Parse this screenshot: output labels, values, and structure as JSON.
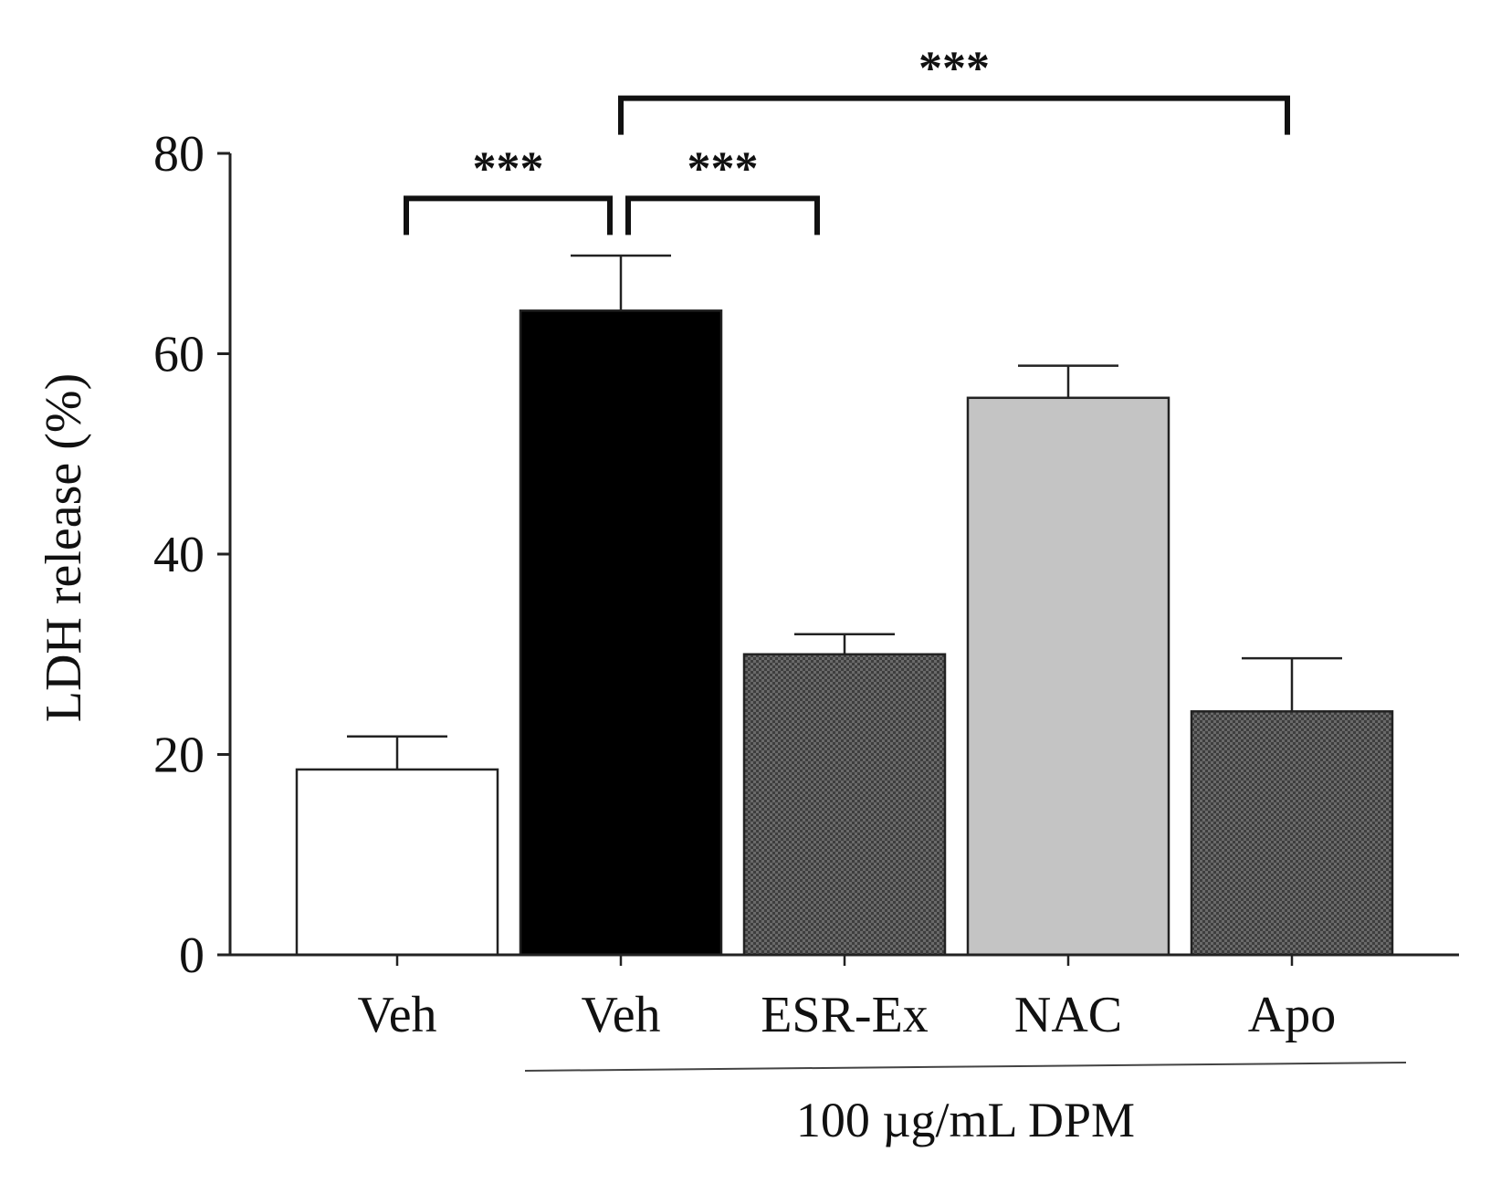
{
  "chart_data": {
    "type": "bar",
    "title": "",
    "xlabel": "",
    "ylabel": "LDH release (%)",
    "ylim": [
      0,
      80
    ],
    "yticks": [
      0,
      20,
      40,
      60,
      80
    ],
    "categories": [
      "Veh",
      "Veh",
      "ESR-Ex",
      "NAC",
      "Apo"
    ],
    "values": [
      18.5,
      64.3,
      30.0,
      55.6,
      24.3
    ],
    "errors": [
      3.3,
      5.5,
      2.0,
      3.2,
      5.3
    ],
    "bar_colors": [
      "#ffffff",
      "#000000",
      "#4a4a4a",
      "#c4c4c4",
      "#4a4a4a"
    ],
    "bar_patterns": [
      "none",
      "none",
      "checker",
      "none",
      "checker"
    ],
    "group_label": "100 µg/mL DPM",
    "group_covers": [
      1,
      2,
      3,
      4
    ],
    "significance": [
      {
        "from": 0,
        "to": 1,
        "label": "***",
        "y": 75.5
      },
      {
        "from": 1,
        "to": 2,
        "label": "***",
        "y": 75.5
      },
      {
        "from": 1,
        "to": 4,
        "label": "***",
        "y": 85.5
      }
    ]
  }
}
